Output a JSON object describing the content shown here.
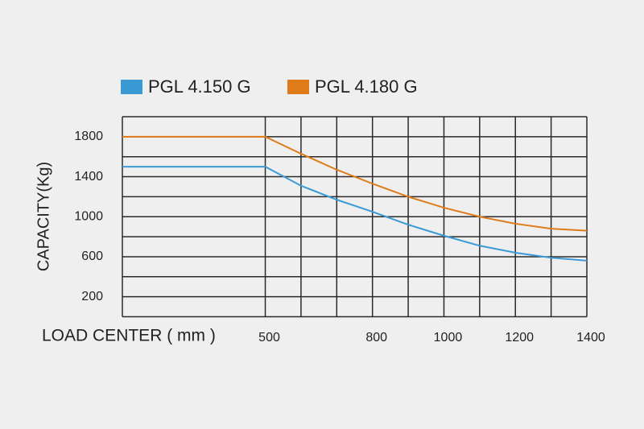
{
  "chart_data": {
    "type": "line",
    "xlabel": "LOAD CENTER ( mm )",
    "ylabel": "CAPACITY(Kg)",
    "x": [
      100,
      500,
      600,
      700,
      800,
      900,
      1000,
      1100,
      1200,
      1300,
      1400
    ],
    "series": [
      {
        "name": "PGL 4.150 G",
        "color": "#3a9ad6",
        "values": [
          1500,
          1500,
          1310,
          1170,
          1050,
          920,
          810,
          710,
          640,
          590,
          560
        ]
      },
      {
        "name": "PGL 4.180 G",
        "color": "#e07b1a",
        "values": [
          1800,
          1800,
          1630,
          1470,
          1330,
          1200,
          1090,
          1000,
          930,
          880,
          860
        ]
      }
    ],
    "xlim": [
      100,
      1400
    ],
    "ylim": [
      0,
      2000
    ],
    "xticks": [
      500,
      800,
      1000,
      1200,
      1400
    ],
    "yticks": [
      200,
      600,
      1000,
      1400,
      1800
    ],
    "xgrid": [
      100,
      500,
      600,
      700,
      800,
      900,
      1000,
      1100,
      1200,
      1300,
      1400
    ],
    "ygrid": [
      0,
      200,
      400,
      600,
      800,
      1000,
      1200,
      1400,
      1600,
      1800,
      2000
    ],
    "legend": "top"
  }
}
